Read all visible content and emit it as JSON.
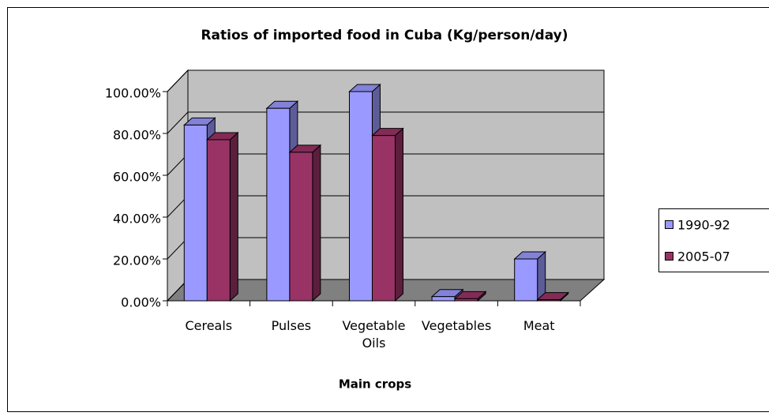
{
  "chart_data": {
    "type": "bar3d",
    "title": "Ratios of imported food in Cuba (Kg/person/day)",
    "xlabel": "Main crops",
    "categories": [
      "Cereals",
      "Pulses",
      "Vegetable Oils",
      "Vegetables",
      "Meat"
    ],
    "series": [
      {
        "name": "1990-92",
        "color": "#9999ff",
        "values": [
          84,
          92,
          100,
          2,
          20
        ]
      },
      {
        "name": "2005-07",
        "color": "#993366",
        "values": [
          77,
          71,
          79,
          1,
          0.5
        ]
      }
    ],
    "ylim": [
      0,
      100
    ],
    "yticks": [
      {
        "value": 0,
        "label": "0.00%"
      },
      {
        "value": 20,
        "label": "20.00%"
      },
      {
        "value": 40,
        "label": "40.00%"
      },
      {
        "value": 60,
        "label": "60.00%"
      },
      {
        "value": 80,
        "label": "80.00%"
      },
      {
        "value": 100,
        "label": "100.00%"
      }
    ],
    "grid": true,
    "legend": "right"
  }
}
